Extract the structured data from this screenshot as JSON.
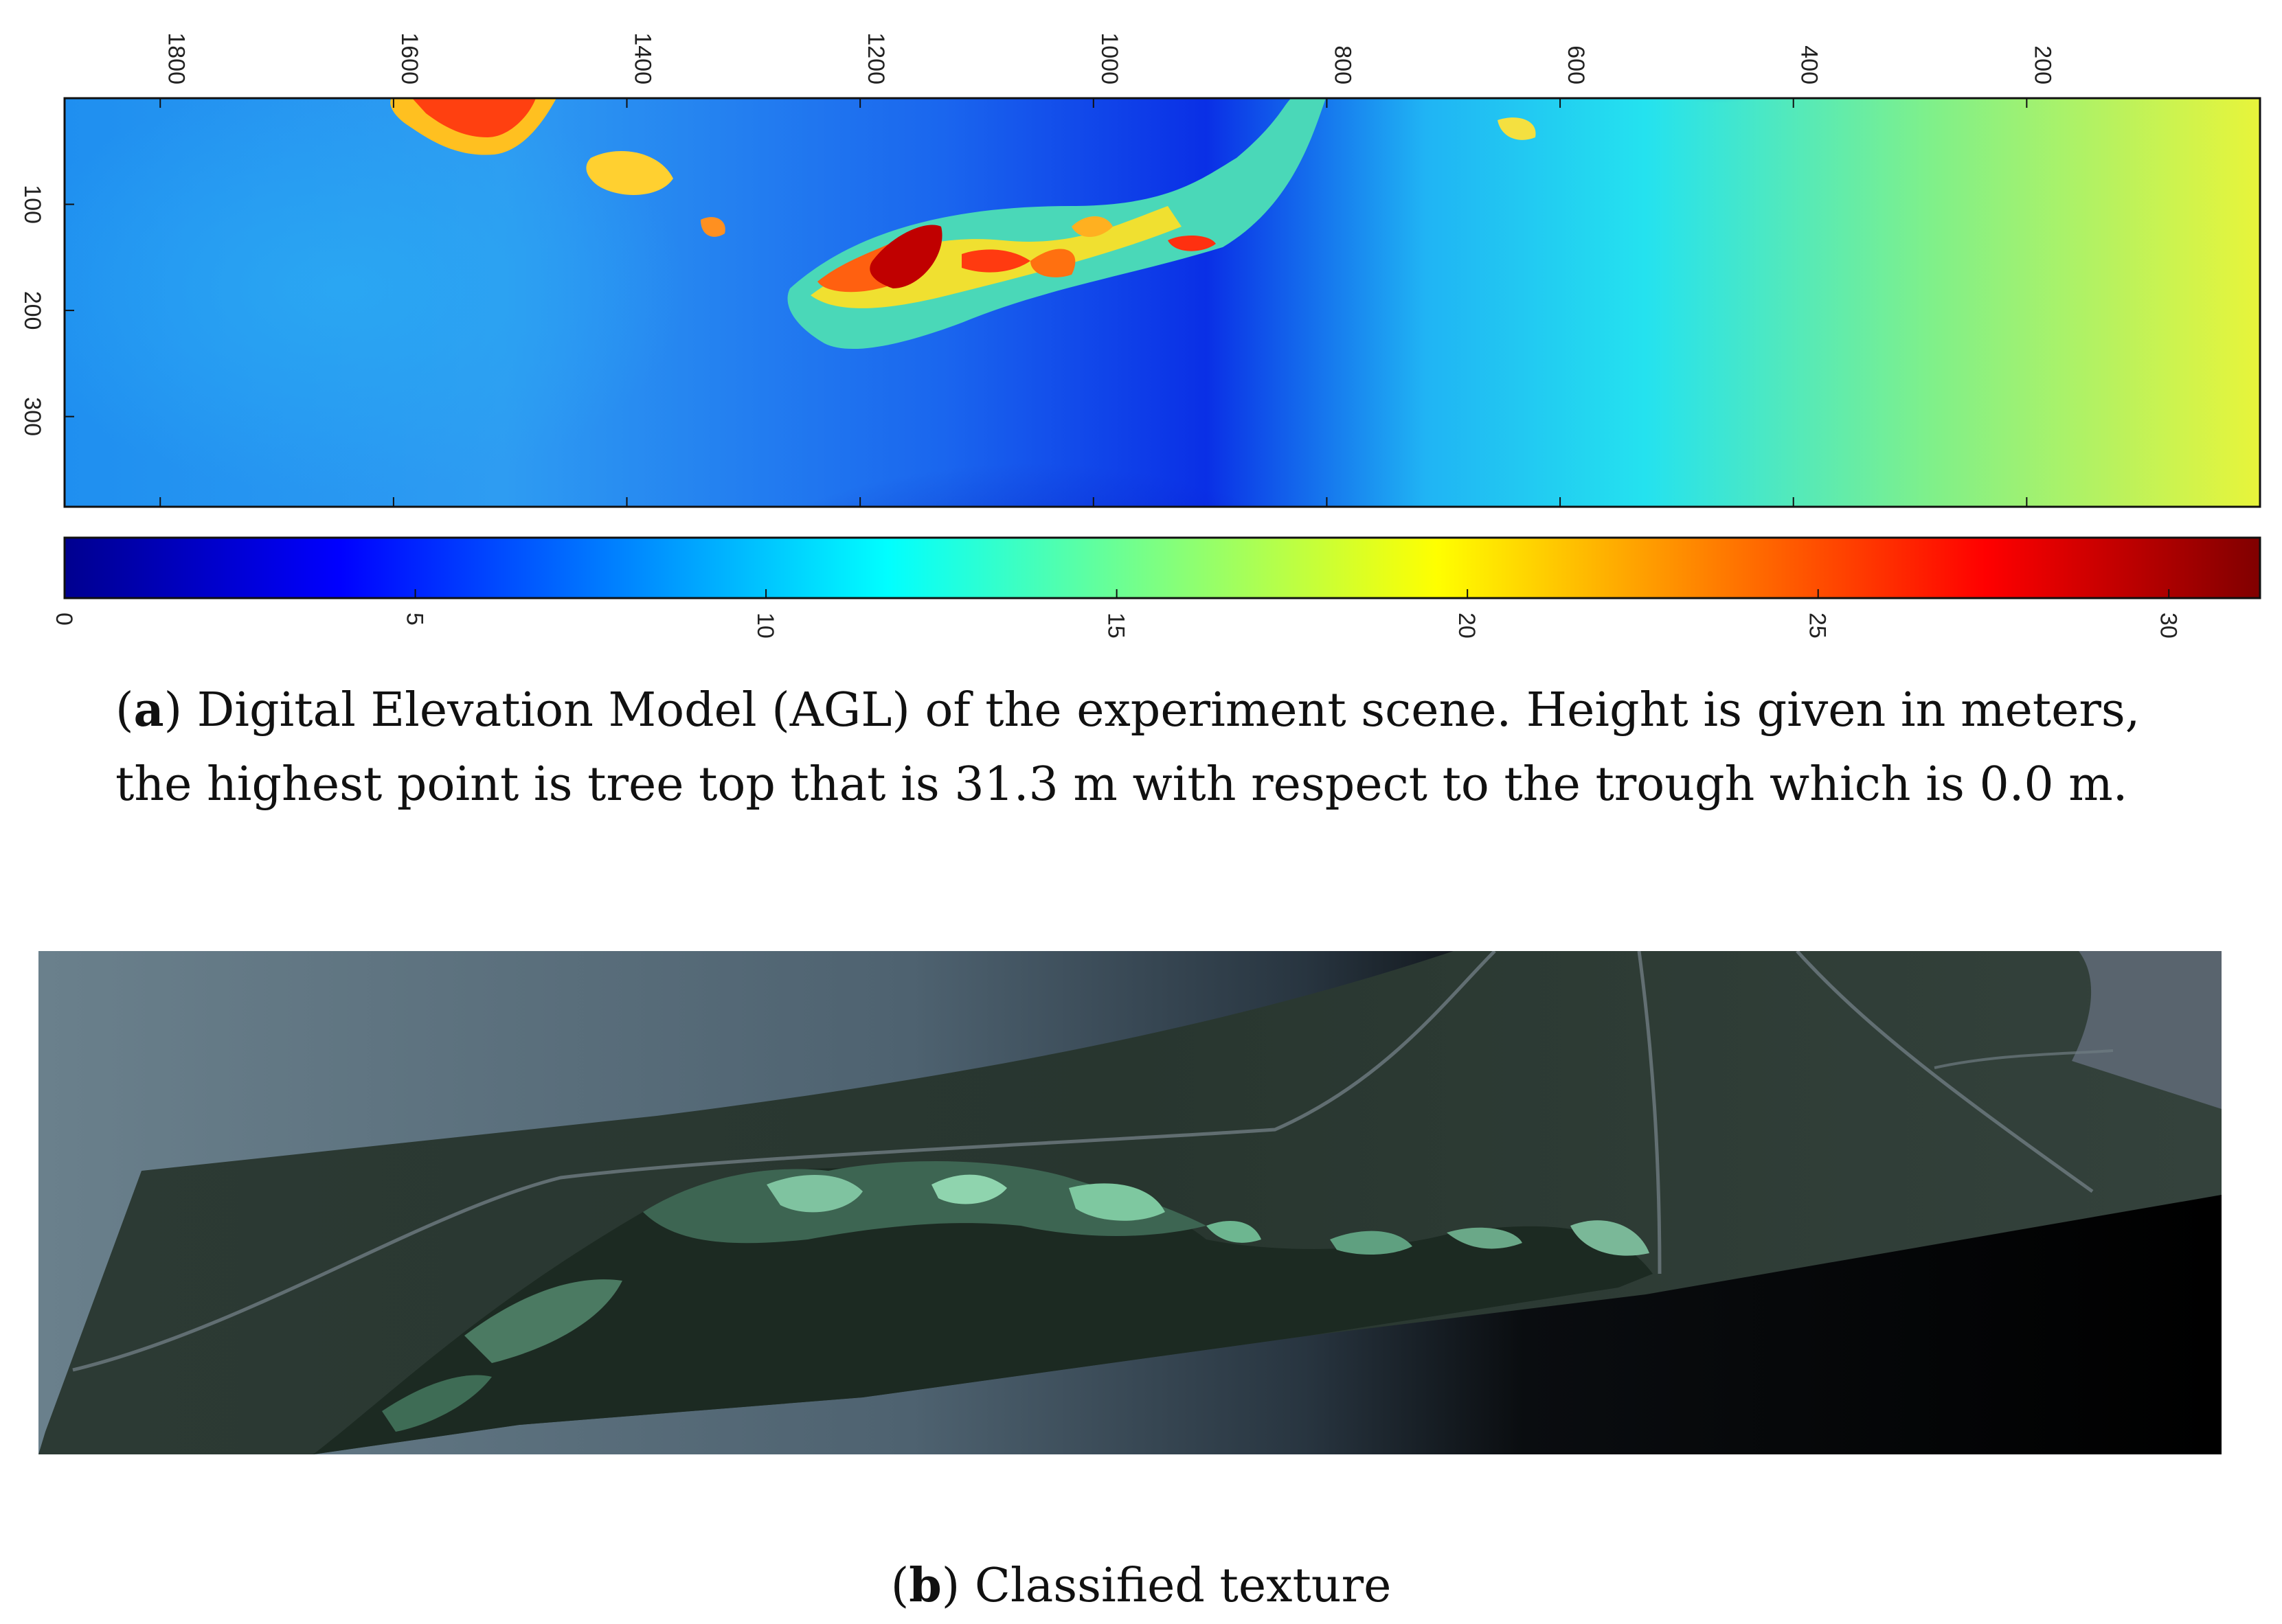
{
  "figure_a": {
    "caption": {
      "label": "a",
      "text": "Digital Elevation Model (AGL) of the experiment scene. Height is given in meters, the highest point is tree top that is 31.3 m with respect to the trough which is 0.0 m."
    },
    "chart_data": {
      "type": "heatmap",
      "x_ticks": [
        1800,
        1600,
        1400,
        1200,
        1000,
        800,
        600,
        400,
        200
      ],
      "x_reversed": true,
      "y_ticks": [
        100,
        200,
        300
      ],
      "colorbar": {
        "ticks": [
          0,
          5,
          10,
          15,
          20,
          25,
          30
        ],
        "range": [
          0,
          31.3
        ],
        "colormap": "jet"
      }
    }
  },
  "figure_b": {
    "caption": {
      "label": "b",
      "text": "Classified texture"
    }
  },
  "colors": {
    "background": "#ffffff",
    "sky_left": "#5f7583",
    "sky_dark": "#000000",
    "terrain": "#2a3a33",
    "vegetation": "#6fb08c"
  }
}
